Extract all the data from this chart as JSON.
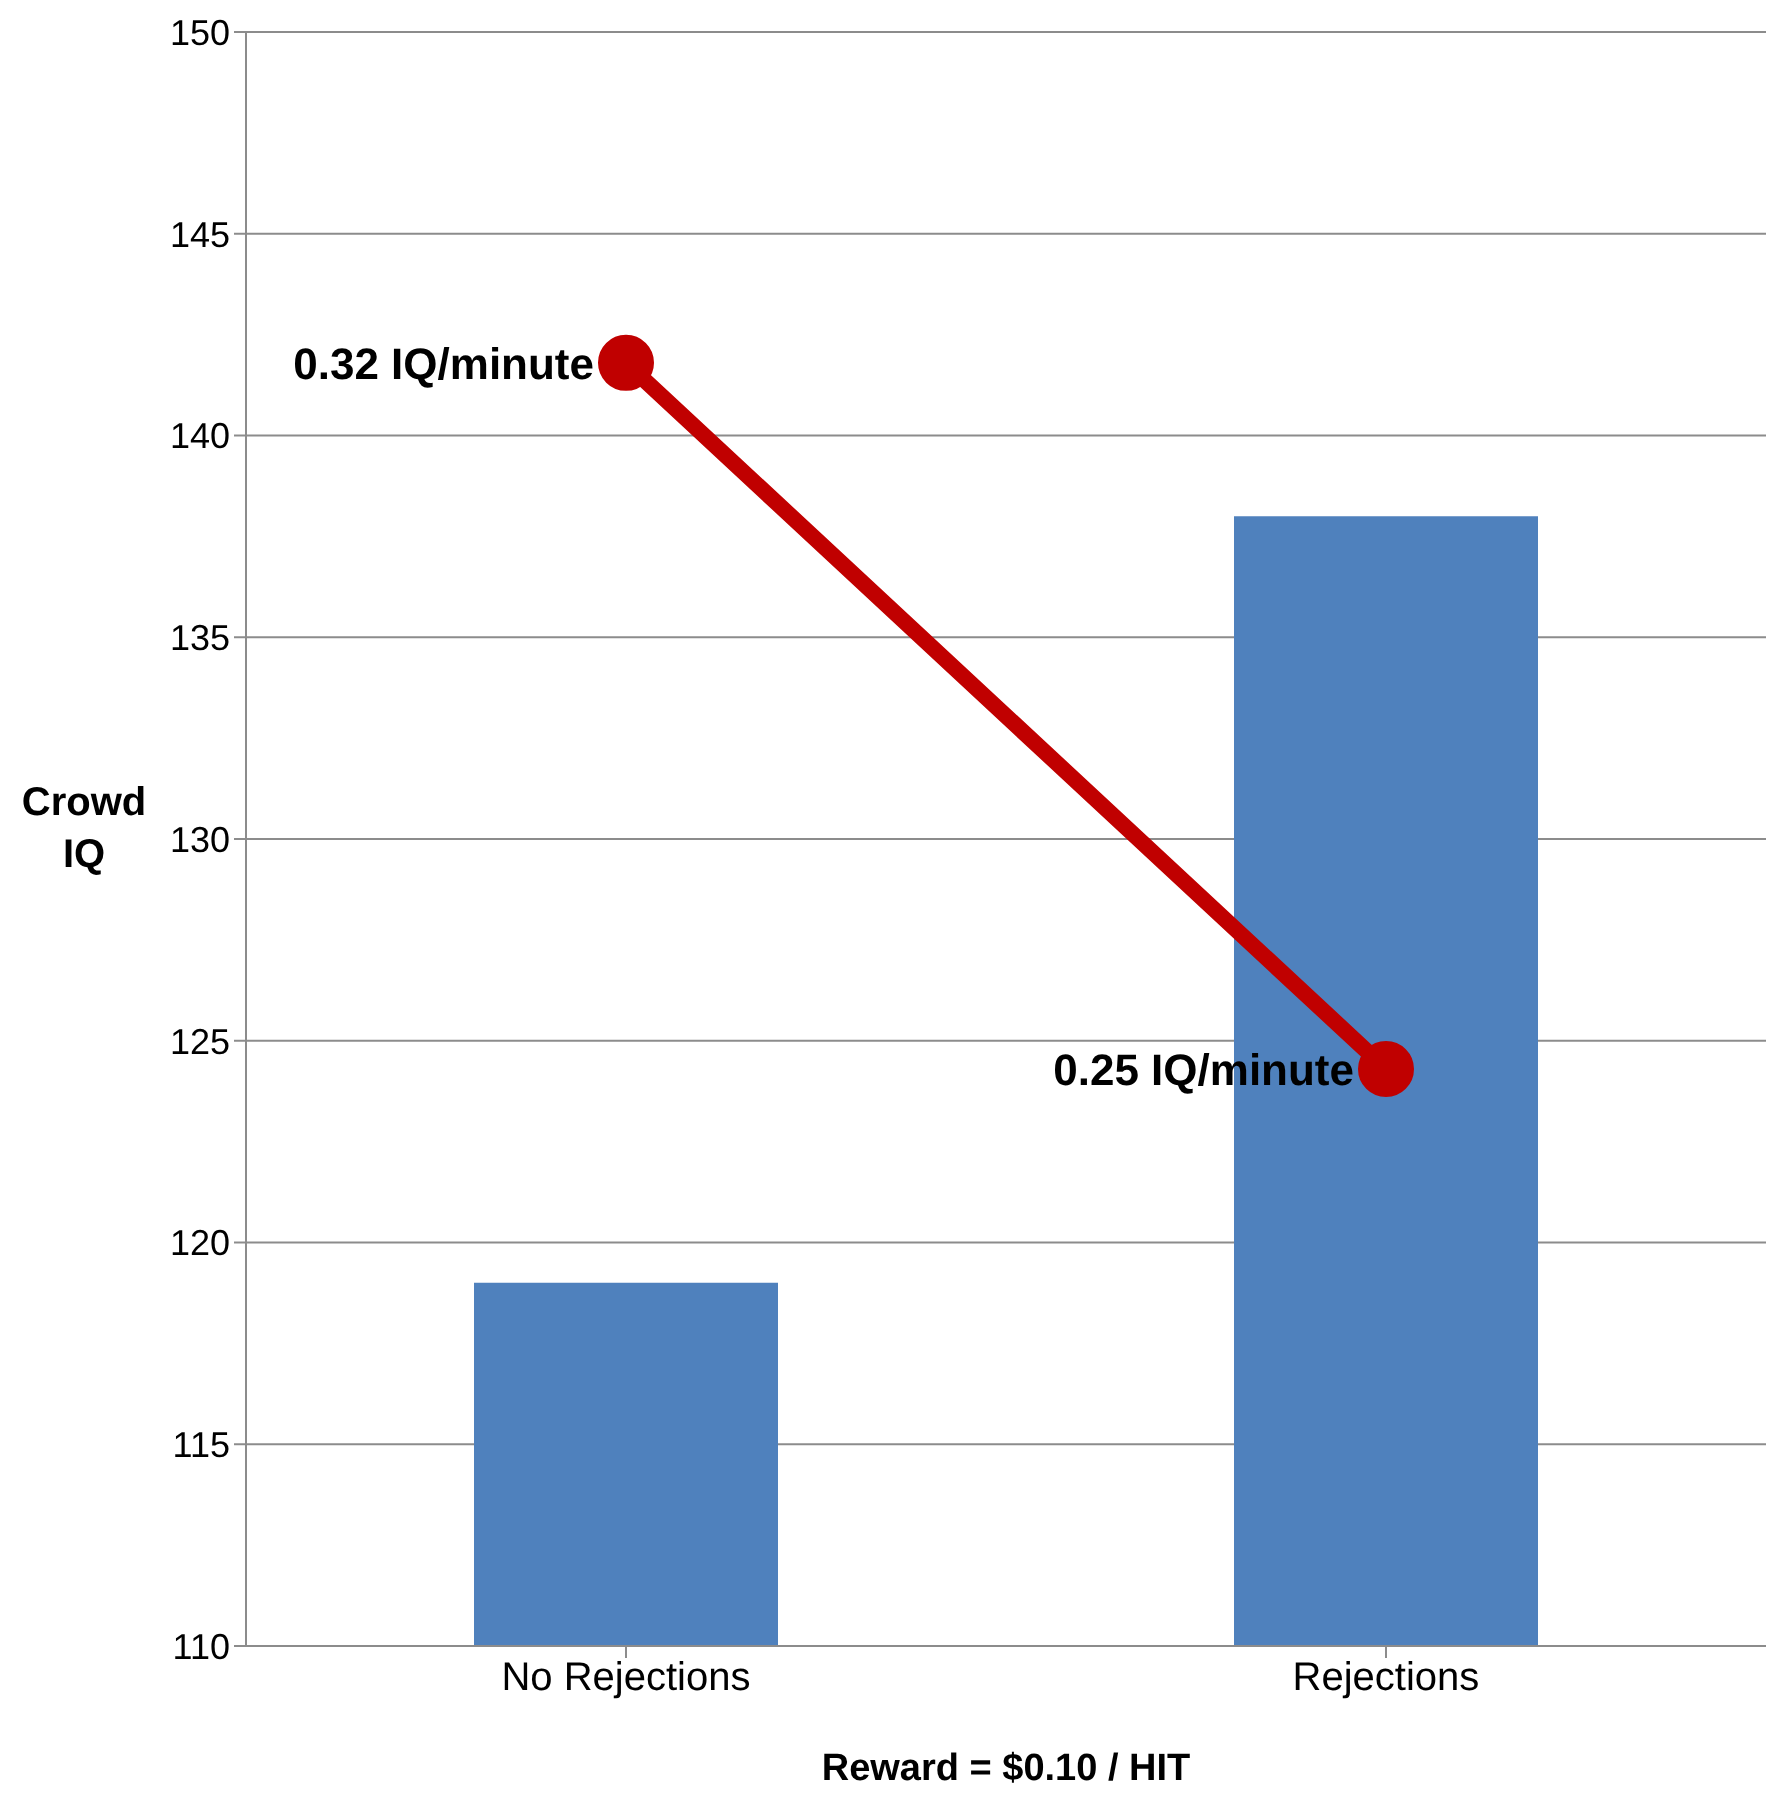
{
  "chart_data": {
    "type": "bar",
    "xlabel": "Reward = $0.10 / HIT",
    "ylabel": "Crowd IQ",
    "categories": [
      "No Rejections",
      "Rejections"
    ],
    "series": [
      {
        "color": "#4f81bd",
        "values": [
          119,
          138
        ]
      },
      {
        "type": "line",
        "color": "#c00000",
        "values": [
          141.8,
          124.3
        ]
      }
    ],
    "annotations": [
      {
        "text": "0.32 IQ/minute",
        "x": "No Rejections",
        "y": 141.8
      },
      {
        "text": "0.25 IQ/minute",
        "x": "Rejections",
        "y": 124.3
      }
    ],
    "ylim": [
      110,
      150
    ],
    "yticks": [
      110,
      115,
      120,
      125,
      130,
      135,
      140,
      145,
      150
    ],
    "grid": "y",
    "marker": "circle"
  }
}
